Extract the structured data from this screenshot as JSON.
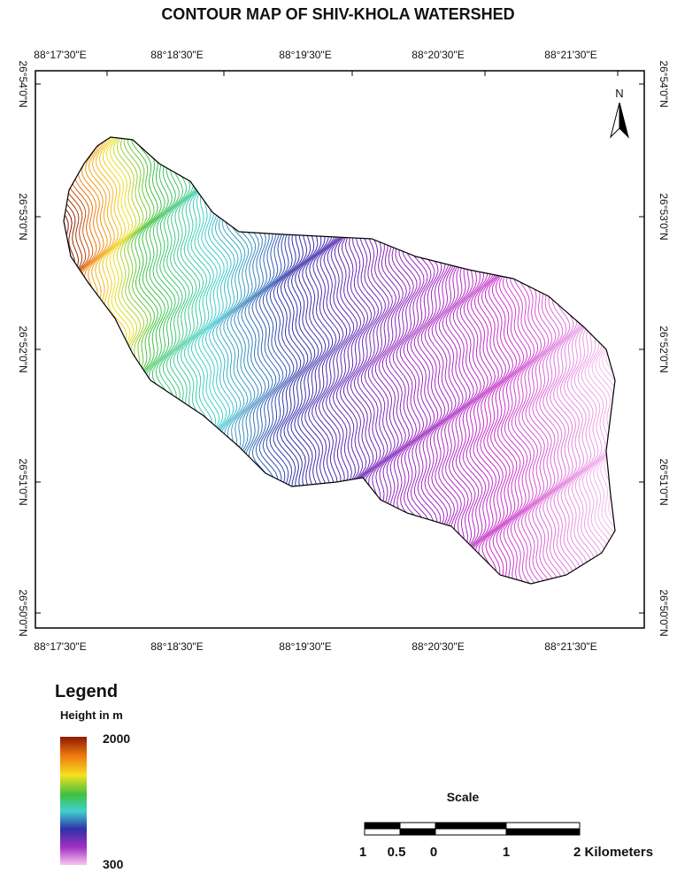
{
  "header": {
    "title": "CONTOUR MAP OF SHIV-KHOLA WATERSHED"
  },
  "map": {
    "longitude_labels": [
      "88°17'30\"E",
      "88°18'30\"E",
      "88°19'30\"E",
      "88°20'30\"E",
      "88°21'30\"E"
    ],
    "latitude_labels": [
      "26°54'0\"N",
      "26°53'0\"N",
      "26°52'0\"N",
      "26°51'0\"N",
      "26°50'0\"N"
    ],
    "north_label": "N"
  },
  "legend": {
    "title": "Legend",
    "subtitle": "Height in m",
    "max": 2000,
    "min": 300
  },
  "scale": {
    "title": "Scale",
    "labels": [
      "1",
      "0.5",
      "0",
      "1",
      "2 Kilometers"
    ]
  }
}
